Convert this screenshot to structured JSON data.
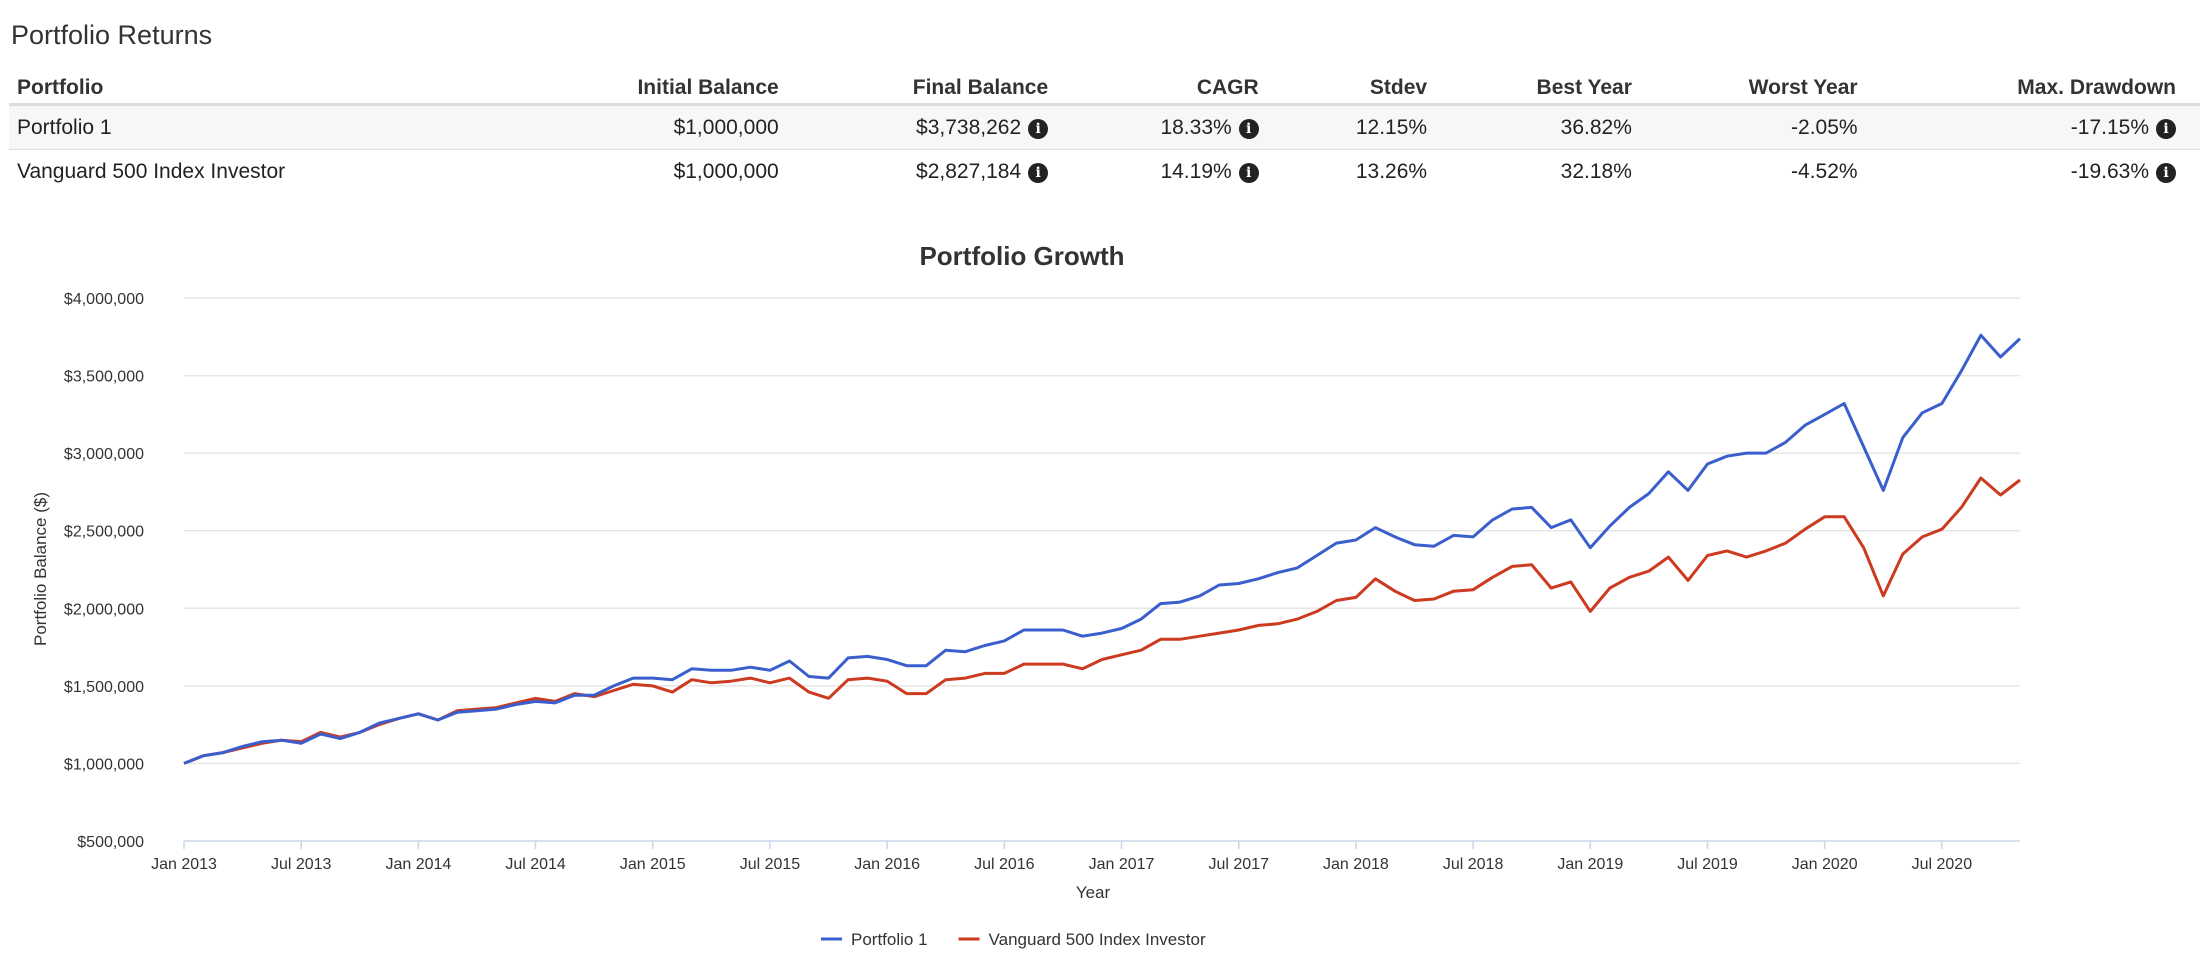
{
  "page": {
    "title": "Portfolio Returns"
  },
  "table": {
    "headers": [
      "Portfolio",
      "Initial Balance",
      "Final Balance",
      "CAGR",
      "Stdev",
      "Best Year",
      "Worst Year",
      "Max. Drawdown"
    ],
    "rows": [
      [
        "Portfolio 1",
        "$1,000,000",
        "$3,738,262",
        "18.33%",
        "12.15%",
        "36.82%",
        "-2.05%",
        "-17.15%"
      ],
      [
        "Vanguard 500 Index Investor",
        "$1,000,000",
        "$2,827,184",
        "14.19%",
        "13.26%",
        "32.18%",
        "-4.52%",
        "-19.63%"
      ]
    ],
    "info_icon": "info-circle-icon"
  },
  "chart_data": {
    "type": "line",
    "title": "Portfolio Growth",
    "xlabel": "Year",
    "ylabel": "Portfolio Balance ($)",
    "ylim": [
      500000,
      4000000
    ],
    "yticks": [
      "$500,000",
      "$1,000,000",
      "$1,500,000",
      "$2,000,000",
      "$2,500,000",
      "$3,000,000",
      "$3,500,000",
      "$4,000,000"
    ],
    "xticks": [
      "Jan 2013",
      "Jul 2013",
      "Jan 2014",
      "Jul 2014",
      "Jan 2015",
      "Jul 2015",
      "Jan 2016",
      "Jul 2016",
      "Jan 2017",
      "Jul 2017",
      "Jan 2018",
      "Jul 2018",
      "Jan 2019",
      "Jul 2019",
      "Jan 2020",
      "Jul 2020"
    ],
    "x_start": "Jan 2013",
    "x_end": "Dec 2020",
    "grid": true,
    "legend_position": "bottom",
    "series": [
      {
        "name": "Portfolio 1",
        "color": "#3a5fcd",
        "values": [
          1000000,
          1050000,
          1070000,
          1110000,
          1140000,
          1150000,
          1130000,
          1190000,
          1160000,
          1200000,
          1260000,
          1290000,
          1320000,
          1280000,
          1330000,
          1340000,
          1350000,
          1380000,
          1400000,
          1390000,
          1440000,
          1440000,
          1500000,
          1550000,
          1550000,
          1540000,
          1610000,
          1600000,
          1600000,
          1620000,
          1600000,
          1660000,
          1560000,
          1550000,
          1680000,
          1690000,
          1670000,
          1630000,
          1630000,
          1730000,
          1720000,
          1760000,
          1790000,
          1860000,
          1860000,
          1860000,
          1820000,
          1840000,
          1870000,
          1930000,
          2030000,
          2040000,
          2080000,
          2150000,
          2160000,
          2190000,
          2230000,
          2260000,
          2340000,
          2420000,
          2440000,
          2520000,
          2460000,
          2410000,
          2400000,
          2470000,
          2460000,
          2570000,
          2640000,
          2650000,
          2520000,
          2570000,
          2390000,
          2530000,
          2650000,
          2740000,
          2880000,
          2760000,
          2930000,
          2980000,
          3000000,
          3000000,
          3070000,
          3180000,
          3250000,
          3320000,
          3040000,
          2760000,
          3100000,
          3260000,
          3320000,
          3530000,
          3760000,
          3620000,
          3738262
        ]
      },
      {
        "name": "Vanguard 500 Index Investor",
        "color": "#cc3a1f",
        "values": [
          1000000,
          1050000,
          1070000,
          1100000,
          1130000,
          1150000,
          1140000,
          1200000,
          1170000,
          1200000,
          1250000,
          1290000,
          1320000,
          1280000,
          1340000,
          1350000,
          1360000,
          1390000,
          1420000,
          1400000,
          1450000,
          1430000,
          1470000,
          1510000,
          1500000,
          1460000,
          1540000,
          1520000,
          1530000,
          1550000,
          1520000,
          1550000,
          1460000,
          1420000,
          1540000,
          1550000,
          1530000,
          1450000,
          1450000,
          1540000,
          1550000,
          1580000,
          1580000,
          1640000,
          1640000,
          1640000,
          1610000,
          1670000,
          1700000,
          1730000,
          1800000,
          1800000,
          1820000,
          1840000,
          1860000,
          1890000,
          1900000,
          1930000,
          1980000,
          2050000,
          2070000,
          2190000,
          2110000,
          2050000,
          2060000,
          2110000,
          2120000,
          2200000,
          2270000,
          2280000,
          2130000,
          2170000,
          1980000,
          2130000,
          2200000,
          2240000,
          2330000,
          2180000,
          2340000,
          2370000,
          2330000,
          2370000,
          2420000,
          2510000,
          2590000,
          2590000,
          2390000,
          2080000,
          2350000,
          2460000,
          2510000,
          2650000,
          2840000,
          2730000,
          2827184
        ]
      }
    ]
  }
}
